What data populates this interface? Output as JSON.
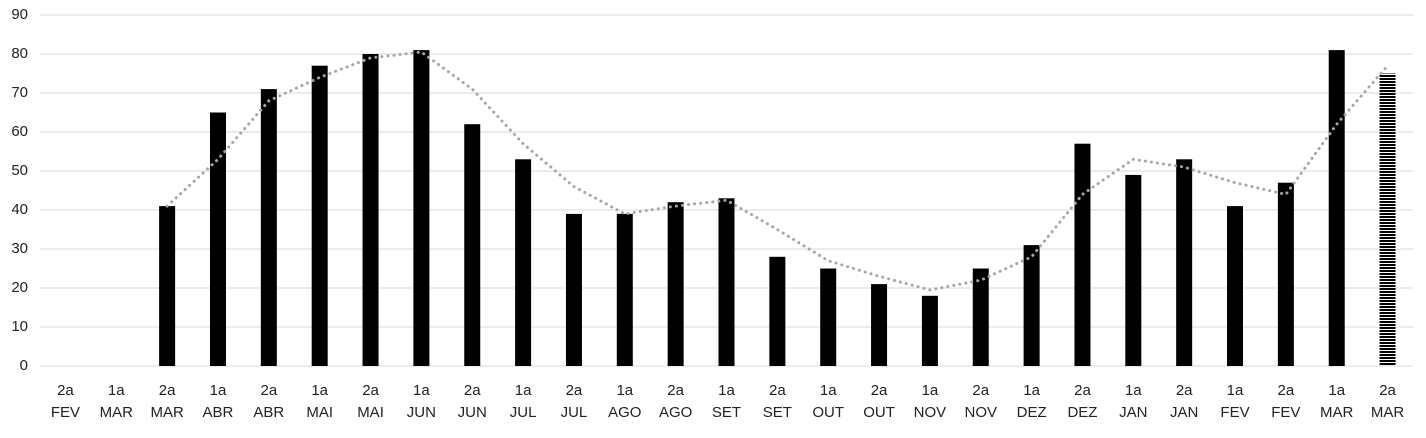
{
  "chart_data": {
    "type": "bar",
    "categories": [
      [
        "2a",
        "FEV"
      ],
      [
        "1a",
        "MAR"
      ],
      [
        "2a",
        "MAR"
      ],
      [
        "1a",
        "ABR"
      ],
      [
        "2a",
        "ABR"
      ],
      [
        "1a",
        "MAI"
      ],
      [
        "2a",
        "MAI"
      ],
      [
        "1a",
        "JUN"
      ],
      [
        "2a",
        "JUN"
      ],
      [
        "1a",
        "JUL"
      ],
      [
        "2a",
        "JUL"
      ],
      [
        "1a",
        "AGO"
      ],
      [
        "2a",
        "AGO"
      ],
      [
        "1a",
        "SET"
      ],
      [
        "2a",
        "SET"
      ],
      [
        "1a",
        "OUT"
      ],
      [
        "2a",
        "OUT"
      ],
      [
        "1a",
        "NOV"
      ],
      [
        "2a",
        "NOV"
      ],
      [
        "1a",
        "DEZ"
      ],
      [
        "2a",
        "DEZ"
      ],
      [
        "1a",
        "JAN"
      ],
      [
        "2a",
        "JAN"
      ],
      [
        "1a",
        "FEV"
      ],
      [
        "2a",
        "FEV"
      ],
      [
        "1a",
        "MAR"
      ],
      [
        "2a",
        "MAR"
      ]
    ],
    "values": [
      null,
      null,
      41,
      65,
      71,
      77,
      80,
      81,
      62,
      53,
      39,
      39,
      42,
      43,
      28,
      25,
      21,
      18,
      25,
      31,
      57,
      49,
      53,
      41,
      47,
      81,
      75
    ],
    "trend": [
      null,
      null,
      41,
      53,
      68,
      74,
      79,
      80.5,
      71,
      57,
      46,
      39,
      41,
      42.5,
      35,
      27,
      23,
      19.5,
      22,
      28,
      44,
      53,
      51,
      47,
      44,
      62,
      77
    ],
    "color": "#000000",
    "trend_color": "#a6a6a6",
    "hatched": [
      26
    ],
    "ylim": [
      0,
      90
    ],
    "yticks": [
      0,
      10,
      20,
      30,
      40,
      50,
      60,
      70,
      80,
      90
    ],
    "grid": true
  }
}
